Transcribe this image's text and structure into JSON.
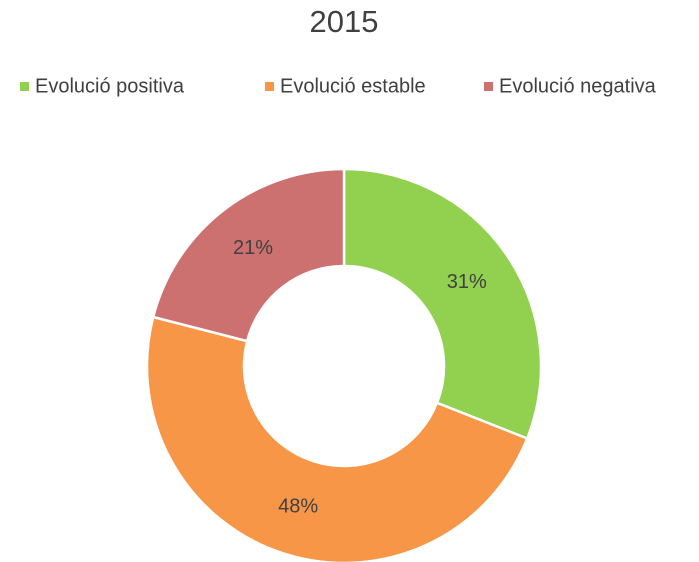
{
  "chart_data": {
    "type": "donut",
    "title": "2015",
    "categories": [
      "Evolució positiva",
      "Evolució estable",
      "Evolució negativa"
    ],
    "values": [
      31,
      48,
      21
    ],
    "value_labels": [
      "31%",
      "48%",
      "21%"
    ],
    "colors": [
      "#92d050",
      "#f79646",
      "#cd7070"
    ],
    "legend": "top"
  }
}
